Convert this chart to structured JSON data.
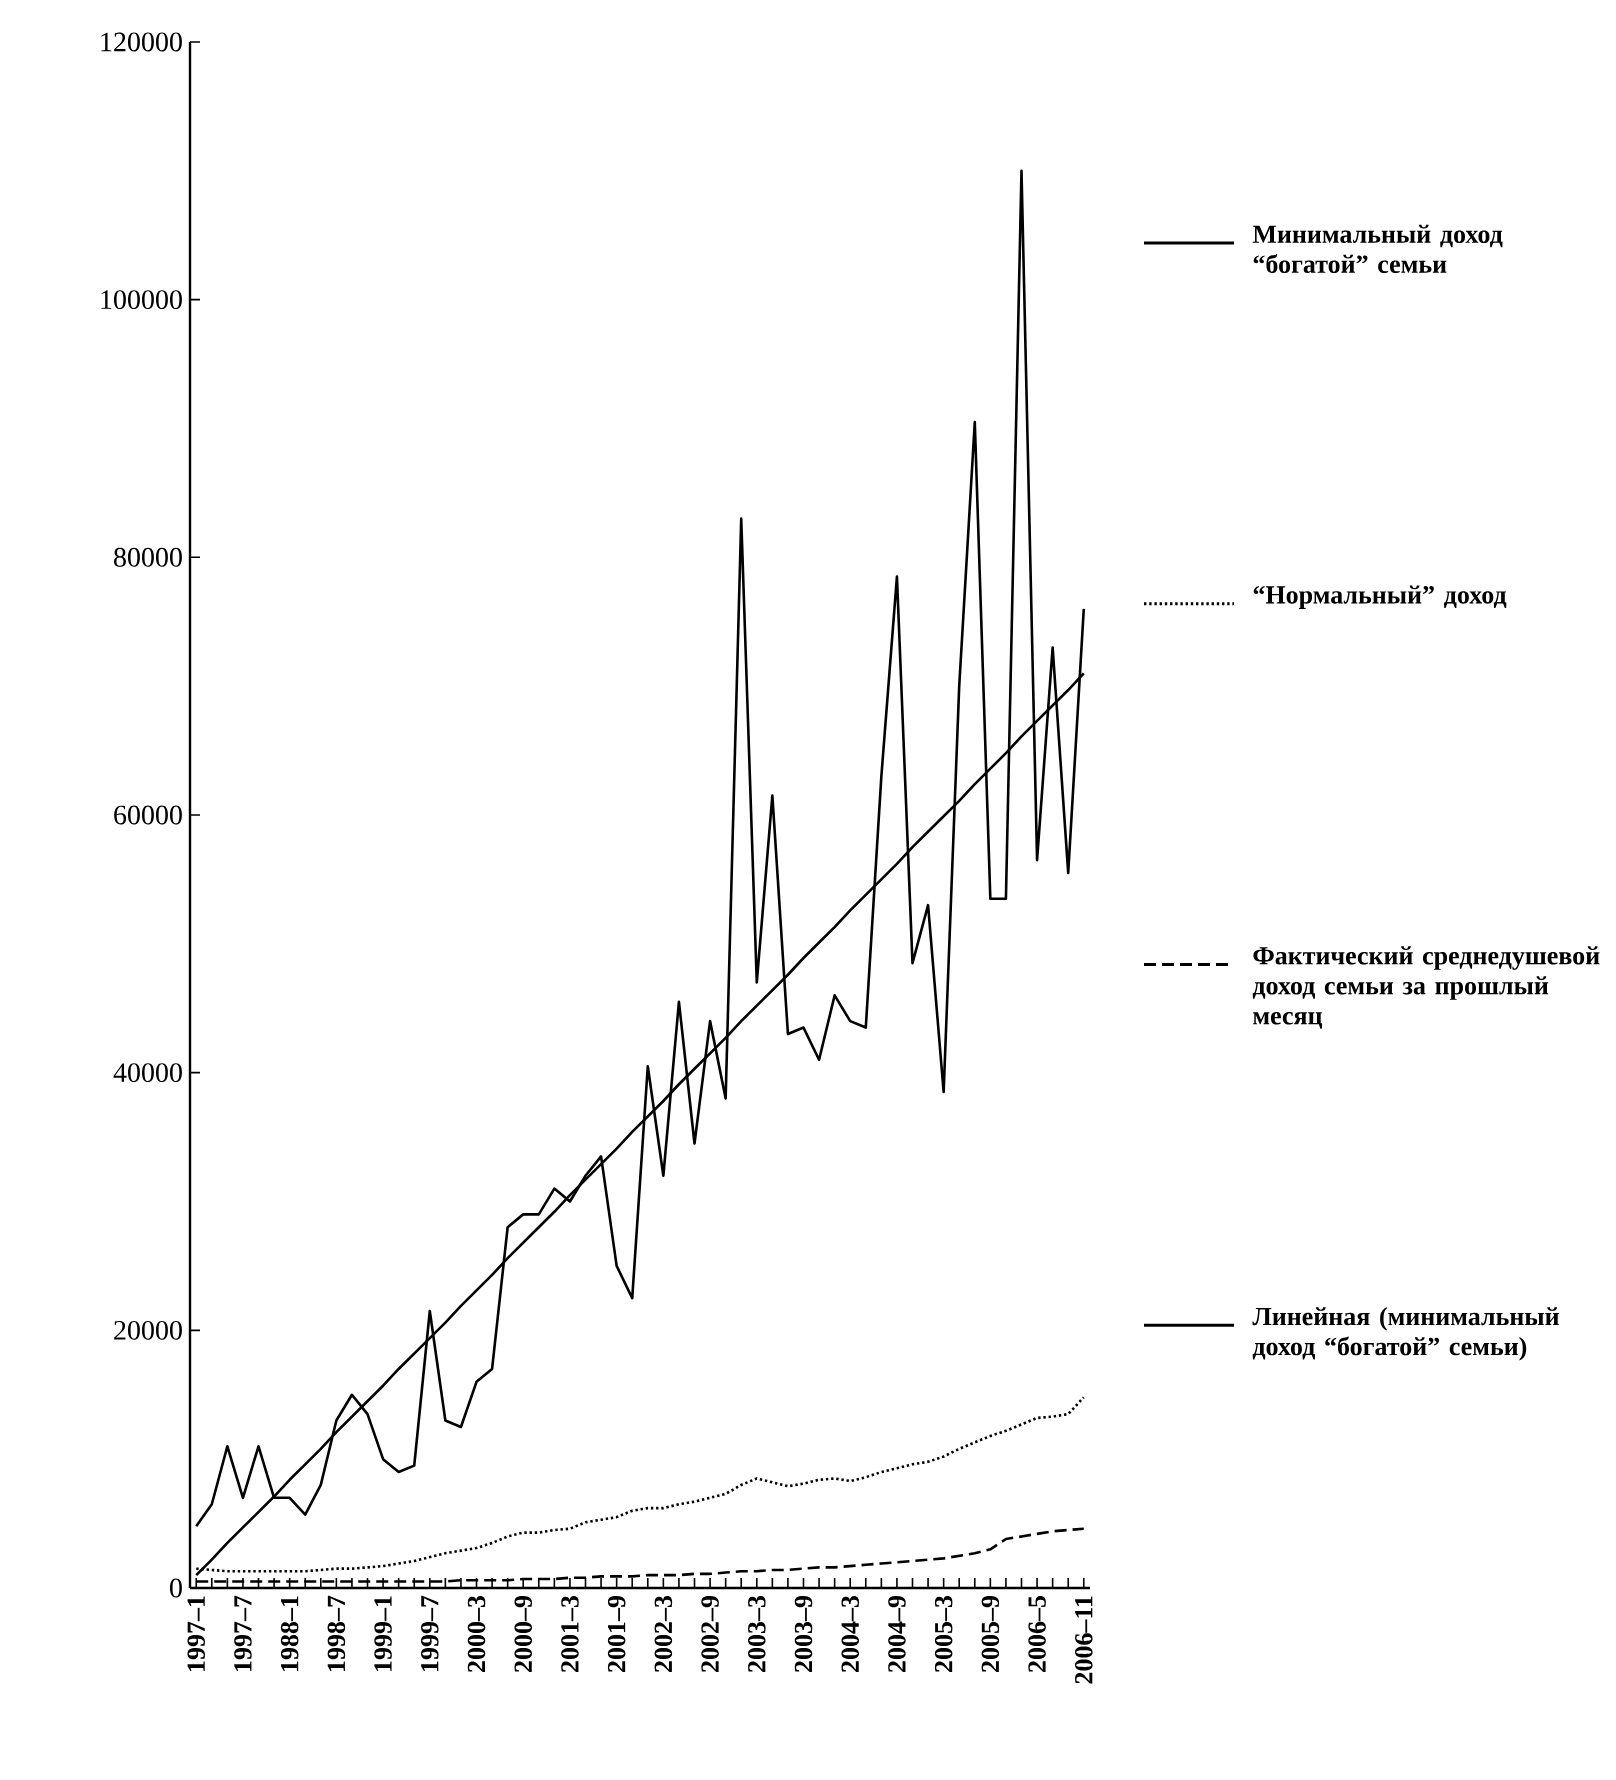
{
  "chart_data": {
    "type": "line",
    "categories": [
      "1997–1",
      null,
      null,
      "1997–7",
      null,
      null,
      "1988–1",
      null,
      null,
      "1998–7",
      null,
      null,
      "1999–1",
      null,
      null,
      "1999–7",
      null,
      null,
      "2000–3",
      null,
      null,
      "2000–9",
      null,
      null,
      "2001–3",
      null,
      null,
      "2001–9",
      null,
      null,
      "2002–3",
      null,
      null,
      "2002–9",
      null,
      null,
      "2003–3",
      null,
      null,
      "2003–9",
      null,
      null,
      "2004–3",
      null,
      null,
      "2004–9",
      null,
      null,
      "2005–3",
      null,
      null,
      "2005–9",
      null,
      null,
      "2006–5",
      null,
      null,
      "2006–11"
    ],
    "series": [
      {
        "name": "Минимальный доход “богатой” семьи",
        "color": "#000000",
        "line_style": "solid",
        "values": [
          4800,
          6500,
          11000,
          7000,
          11000,
          7000,
          7000,
          5700,
          8000,
          13000,
          15000,
          13500,
          10000,
          9000,
          9500,
          21500,
          13000,
          12500,
          16000,
          17000,
          28000,
          29000,
          29000,
          31000,
          30000,
          32000,
          33500,
          25000,
          22500,
          40500,
          32000,
          45500,
          34500,
          44000,
          38000,
          83000,
          47000,
          61500,
          43000,
          43500,
          41000,
          46000,
          44000,
          43500,
          63000,
          78500,
          48500,
          53000,
          38500,
          70000,
          90500,
          53500,
          53500,
          110000,
          56500,
          73000,
          55500,
          76000
        ]
      },
      {
        "name": "“Нормальный” доход",
        "color": "#000000",
        "line_style": "dotted",
        "values": [
          1500,
          1400,
          1300,
          1300,
          1300,
          1300,
          1300,
          1300,
          1400,
          1500,
          1500,
          1600,
          1700,
          1900,
          2100,
          2400,
          2700,
          2900,
          3100,
          3500,
          4000,
          4300,
          4300,
          4500,
          4600,
          5100,
          5300,
          5500,
          6000,
          6200,
          6200,
          6500,
          6700,
          7000,
          7300,
          8000,
          8500,
          8200,
          7900,
          8100,
          8400,
          8500,
          8300,
          8600,
          9000,
          9300,
          9600,
          9800,
          10200,
          10800,
          11300,
          11800,
          12200,
          12700,
          13200,
          13300,
          13500,
          14800
        ]
      },
      {
        "name": "Фактический среднедушевой доход семьи за прошлый месяц",
        "color": "#000000",
        "line_style": "dashed",
        "values": [
          500,
          500,
          500,
          500,
          500,
          500,
          500,
          500,
          500,
          500,
          500,
          500,
          500,
          500,
          500,
          500,
          500,
          600,
          600,
          600,
          600,
          700,
          700,
          700,
          800,
          800,
          900,
          900,
          900,
          1000,
          1000,
          1000,
          1100,
          1100,
          1200,
          1300,
          1300,
          1400,
          1400,
          1500,
          1600,
          1600,
          1700,
          1800,
          1900,
          2000,
          2100,
          2200,
          2300,
          2500,
          2700,
          3000,
          3800,
          4000,
          4200,
          4400,
          4500,
          4600
        ]
      },
      {
        "name": "Линейная (минимальный доход “богатой” семьи)",
        "color": "#000000",
        "line_style": "solid",
        "values": [
          1000,
          2200,
          3500,
          4700,
          5900,
          7100,
          8400,
          9600,
          10800,
          12100,
          13300,
          14500,
          15700,
          17000,
          18200,
          19400,
          20600,
          21900,
          23100,
          24300,
          25600,
          26800,
          28000,
          29200,
          30500,
          31700,
          32900,
          34100,
          35400,
          36600,
          37800,
          39100,
          40300,
          41500,
          42700,
          44000,
          45200,
          46400,
          47600,
          48900,
          50100,
          51300,
          52600,
          53800,
          55000,
          56200,
          57500,
          58700,
          59900,
          61100,
          62400,
          63600,
          64800,
          66100,
          67300,
          68500,
          69700,
          71000
        ]
      }
    ],
    "ylim": [
      0,
      120000
    ],
    "yticks": [
      0,
      20000,
      40000,
      60000,
      80000,
      100000,
      120000
    ],
    "legend": "right",
    "marker": "none"
  }
}
